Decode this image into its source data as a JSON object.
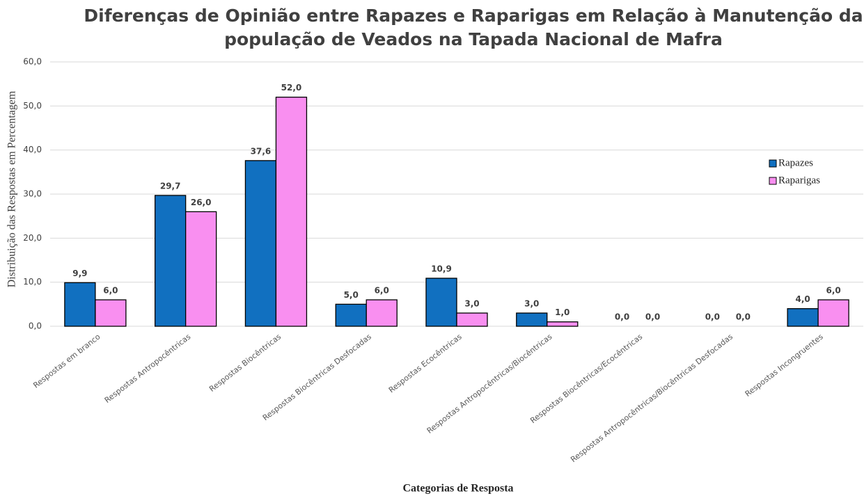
{
  "chart_data": {
    "type": "bar",
    "title": "Diferenças de Opinião entre Rapazes e Raparigas em Relação à Manutenção da população de Veados na Tapada Nacional de Mafra",
    "x_label": "Categorias de Resposta",
    "y_label": "Distribuição das Respostas em Percentagem",
    "categories": [
      "Respostas em branco",
      "Respostas Antropocêntricas",
      "Respostas Biocêntricas",
      "Respostas Biocêntricas Desfocadas",
      "Respostas Ecocêntricas",
      "Respostas Antropocêntricas/Biocêntricas",
      "Respostas Biocêntricas/Ecocêntricas",
      "Respostas Antropocêntricas/Biocêntricas Desfocadas",
      "Respostas Incongruentes"
    ],
    "series": [
      {
        "name": "Rapazes",
        "color": "#1170c0",
        "values": [
          9.9,
          29.7,
          37.6,
          5.0,
          10.9,
          3.0,
          0.0,
          0.0,
          4.0
        ],
        "value_labels": [
          "9,9",
          "29,7",
          "37,6",
          "5,0",
          "10,9",
          "3,0",
          "0,0",
          "0,0",
          "4,0"
        ]
      },
      {
        "name": "Raparigas",
        "color": "#f98ff0",
        "values": [
          6.0,
          26.0,
          52.0,
          6.0,
          3.0,
          1.0,
          0.0,
          0.0,
          6.0
        ],
        "value_labels": [
          "6,0",
          "26,0",
          "52,0",
          "6,0",
          "3,0",
          "1,0",
          "0,0",
          "0,0",
          "6,0"
        ]
      }
    ],
    "ylim": [
      0,
      60
    ],
    "yticks": [
      {
        "value": 0,
        "label": "0,0"
      },
      {
        "value": 10,
        "label": "10,0"
      },
      {
        "value": 20,
        "label": "20,0"
      },
      {
        "value": 30,
        "label": "30,0"
      },
      {
        "value": 40,
        "label": "40,0"
      },
      {
        "value": 50,
        "label": "50,0"
      },
      {
        "value": 60,
        "label": "60,0"
      }
    ],
    "grid": true,
    "legend": "right"
  }
}
